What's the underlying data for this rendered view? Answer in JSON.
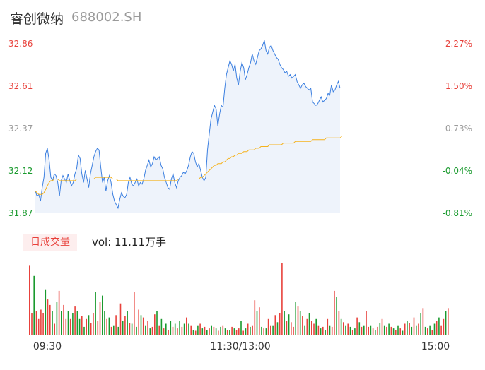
{
  "header": {
    "name": "睿创微纳",
    "code": "688002.SH"
  },
  "volume": {
    "badge": "日成交量",
    "label": "vol: 11.11万手"
  },
  "colors": {
    "up": "#e8413b",
    "down": "#1a9a2e",
    "neutral": "#9a9a9a",
    "price_line": "#3b7fe0",
    "avg_line": "#f5b21b",
    "area": "#eef3fb"
  },
  "chart_data": {
    "type": "line",
    "price_axis": {
      "ylim": [
        31.87,
        32.86
      ],
      "ticks": [
        "32.86",
        "32.61",
        "32.37",
        "32.12",
        "31.87"
      ],
      "tick_values": [
        32.86,
        32.61,
        32.37,
        32.12,
        31.87
      ]
    },
    "pct_axis": {
      "ticks": [
        "2.27%",
        "1.50%",
        "0.73%",
        "-0.04%",
        "-0.81%"
      ]
    },
    "x_ticks": [
      "09:30",
      "11:30/13:00",
      "15:00"
    ],
    "series": [
      {
        "key": "price",
        "values": [
          32.0,
          31.97,
          31.98,
          31.94,
          32.02,
          32.08,
          32.22,
          32.25,
          32.18,
          32.08,
          32.06,
          32.1,
          32.09,
          32.05,
          31.97,
          32.06,
          32.09,
          32.07,
          32.05,
          32.1,
          32.06,
          32.03,
          32.05,
          32.1,
          32.13,
          32.21,
          32.19,
          32.1,
          32.05,
          32.12,
          32.07,
          32.02,
          32.1,
          32.15,
          32.2,
          32.23,
          32.25,
          32.24,
          32.14,
          32.05,
          32.08,
          32.0,
          32.06,
          32.09,
          32.05,
          31.98,
          31.94,
          31.92,
          31.9,
          31.95,
          31.99,
          31.97,
          31.96,
          31.98,
          32.05,
          32.08,
          32.04,
          32.03,
          32.05,
          32.07,
          32.03,
          32.05,
          32.04,
          32.07,
          32.12,
          32.15,
          32.18,
          32.14,
          32.16,
          32.2,
          32.18,
          32.19,
          32.2,
          32.15,
          32.13,
          32.08,
          32.05,
          32.02,
          32.01,
          32.07,
          32.1,
          32.05,
          32.02,
          32.06,
          32.08,
          32.09,
          32.11,
          32.1,
          32.12,
          32.15,
          32.2,
          32.23,
          32.22,
          32.17,
          32.14,
          32.16,
          32.12,
          32.08,
          32.06,
          32.08,
          32.24,
          32.33,
          32.42,
          32.46,
          32.5,
          32.48,
          32.38,
          32.45,
          32.5,
          32.49,
          32.6,
          32.68,
          32.72,
          32.76,
          32.74,
          32.7,
          32.74,
          32.66,
          32.62,
          32.7,
          32.75,
          32.72,
          32.65,
          32.68,
          32.72,
          32.75,
          32.8,
          32.76,
          32.74,
          32.78,
          32.82,
          32.83,
          32.85,
          32.88,
          32.82,
          32.8,
          32.84,
          32.85,
          32.82,
          32.8,
          32.78,
          32.77,
          32.74,
          32.72,
          32.71,
          32.69,
          32.7,
          32.67,
          32.68,
          32.66,
          32.67,
          32.68,
          32.64,
          32.62,
          32.6,
          32.62,
          32.63,
          32.61,
          32.6,
          32.59,
          32.6,
          32.52,
          32.51,
          32.5,
          32.51,
          32.53,
          32.55,
          32.52,
          32.53,
          32.54,
          32.57,
          32.56,
          32.62,
          32.58,
          32.59,
          32.62,
          32.64,
          32.6
        ],
        "color": "#3b7fe0"
      },
      {
        "key": "avg",
        "values": [
          32.0,
          31.99,
          31.98,
          31.98,
          31.98,
          31.99,
          32.01,
          32.03,
          32.05,
          32.06,
          32.06,
          32.07,
          32.07,
          32.07,
          32.06,
          32.06,
          32.06,
          32.06,
          32.06,
          32.06,
          32.06,
          32.06,
          32.06,
          32.06,
          32.07,
          32.07,
          32.07,
          32.07,
          32.07,
          32.07,
          32.07,
          32.07,
          32.07,
          32.07,
          32.07,
          32.08,
          32.08,
          32.08,
          32.08,
          32.08,
          32.08,
          32.08,
          32.08,
          32.08,
          32.08,
          32.07,
          32.07,
          32.07,
          32.06,
          32.06,
          32.06,
          32.06,
          32.06,
          32.06,
          32.06,
          32.06,
          32.06,
          32.06,
          32.06,
          32.06,
          32.06,
          32.06,
          32.06,
          32.06,
          32.06,
          32.06,
          32.06,
          32.06,
          32.06,
          32.06,
          32.06,
          32.06,
          32.06,
          32.06,
          32.06,
          32.06,
          32.06,
          32.06,
          32.06,
          32.06,
          32.06,
          32.06,
          32.06,
          32.07,
          32.07,
          32.07,
          32.07,
          32.07,
          32.07,
          32.07,
          32.07,
          32.07,
          32.07,
          32.07,
          32.07,
          32.07,
          32.08,
          32.08,
          32.09,
          32.1,
          32.11,
          32.12,
          32.13,
          32.14,
          32.15,
          32.15,
          32.16,
          32.16,
          32.16,
          32.17,
          32.17,
          32.18,
          32.19,
          32.19,
          32.2,
          32.2,
          32.21,
          32.21,
          32.22,
          32.22,
          32.22,
          32.23,
          32.23,
          32.23,
          32.24,
          32.24,
          32.24,
          32.24,
          32.25,
          32.25,
          32.25,
          32.26,
          32.26,
          32.26,
          32.26,
          32.26,
          32.27,
          32.27,
          32.27,
          32.27,
          32.27,
          32.27,
          32.27,
          32.27,
          32.28,
          32.28,
          32.28,
          32.28,
          32.28,
          32.28,
          32.28,
          32.29,
          32.29,
          32.29,
          32.29,
          32.29,
          32.29,
          32.29,
          32.29,
          32.29,
          32.29,
          32.3,
          32.3,
          32.3,
          32.3,
          32.3,
          32.3,
          32.3,
          32.3,
          32.31,
          32.31,
          32.31,
          32.31,
          32.31,
          32.31,
          32.31,
          32.31,
          32.31,
          32.32
        ],
        "color": "#f5b21b"
      }
    ],
    "volume_bars": [
      88,
      28,
      75,
      30,
      20,
      32,
      28,
      58,
      45,
      38,
      30,
      14,
      42,
      56,
      30,
      38,
      20,
      30,
      20,
      28,
      36,
      30,
      20,
      24,
      10,
      20,
      25,
      15,
      28,
      55,
      18,
      42,
      50,
      30,
      20,
      22,
      10,
      12,
      25,
      10,
      40,
      18,
      24,
      30,
      15,
      14,
      55,
      10,
      32,
      25,
      22,
      12,
      18,
      8,
      10,
      26,
      30,
      12,
      20,
      8,
      14,
      6,
      18,
      10,
      14,
      8,
      18,
      10,
      14,
      22,
      14,
      12,
      6,
      5,
      12,
      14,
      8,
      10,
      6,
      8,
      12,
      10,
      8,
      5,
      10,
      12,
      8,
      6,
      6,
      10,
      8,
      6,
      8,
      18,
      5,
      8,
      14,
      10,
      12,
      44,
      30,
      35,
      10,
      8,
      8,
      20,
      12,
      12,
      25,
      16,
      28,
      92,
      30,
      18,
      26,
      16,
      10,
      42,
      36,
      30,
      24,
      12,
      20,
      28,
      18,
      14,
      20,
      12,
      8,
      10,
      6,
      20,
      12,
      10,
      56,
      48,
      30,
      20,
      16,
      12,
      14,
      10,
      6,
      8,
      22,
      16,
      10,
      12,
      30,
      10,
      12,
      8,
      6,
      10,
      15,
      20,
      12,
      10,
      14,
      10,
      8,
      6,
      12,
      8,
      5,
      14,
      18,
      15,
      10,
      22,
      12,
      14,
      28,
      34,
      10,
      8,
      12,
      6,
      14,
      18,
      22,
      12,
      20,
      30,
      34
    ],
    "volume_up": [
      1,
      1,
      0,
      1,
      1,
      1,
      1,
      0,
      1,
      1,
      0,
      1,
      0,
      1,
      0,
      1,
      1,
      0,
      1,
      0,
      1,
      0,
      0,
      1,
      0,
      1,
      0,
      1,
      1,
      0,
      1,
      1,
      0,
      0,
      1,
      0,
      1,
      0,
      1,
      0,
      1,
      0,
      1,
      0,
      1,
      0,
      1,
      0,
      1,
      0,
      1,
      0,
      1,
      0,
      1,
      1,
      0,
      1,
      0,
      1,
      0,
      1,
      0,
      1,
      0,
      1,
      0,
      1,
      0,
      1,
      0,
      1,
      0,
      1,
      0,
      1,
      0,
      1,
      0,
      1,
      0,
      1,
      0,
      1,
      0,
      1,
      0,
      1,
      0,
      1,
      0,
      1,
      1,
      0,
      1,
      0,
      1,
      0,
      1,
      1,
      0,
      1,
      0,
      1,
      0,
      1,
      1,
      0,
      1,
      0,
      1,
      1,
      0,
      1,
      0,
      1,
      1,
      0,
      1,
      0,
      1,
      0,
      1,
      0,
      1,
      1,
      0,
      1,
      0,
      1,
      0,
      1,
      0,
      1,
      1,
      0,
      1,
      0,
      1,
      0,
      1,
      0,
      1,
      0,
      1,
      0,
      1,
      0,
      1,
      1,
      0,
      1,
      0,
      1,
      0,
      1,
      0,
      1,
      0,
      1,
      0,
      1,
      0,
      1,
      0,
      1,
      0,
      1,
      0,
      1,
      0,
      1,
      0,
      1,
      0,
      1,
      0,
      1,
      0,
      1,
      0,
      1,
      1,
      0,
      1
    ]
  }
}
